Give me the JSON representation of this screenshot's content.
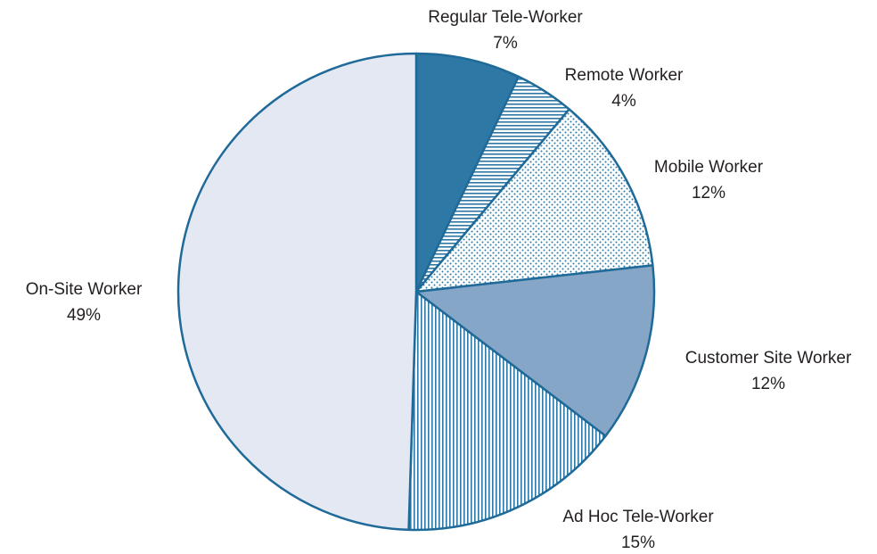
{
  "chart_data": {
    "type": "pie",
    "categories": [
      "Regular Tele-Worker",
      "Remote Worker",
      "Mobile Worker",
      "Customer Site Worker",
      "Ad Hoc Tele-Worker",
      "On-Site Worker"
    ],
    "values": [
      7,
      4,
      12,
      12,
      15,
      49
    ],
    "value_labels": [
      "7%",
      "4%",
      "12%",
      "12%",
      "15%",
      "49%"
    ],
    "colors": [
      "#2e78a6",
      "#2e78a6",
      "#2e78a6",
      "#86a6c8",
      "#2e78a6",
      "#e4e8f2"
    ],
    "patterns": [
      "solid",
      "horizontal",
      "dots",
      "solid",
      "vertical",
      "solid"
    ]
  }
}
